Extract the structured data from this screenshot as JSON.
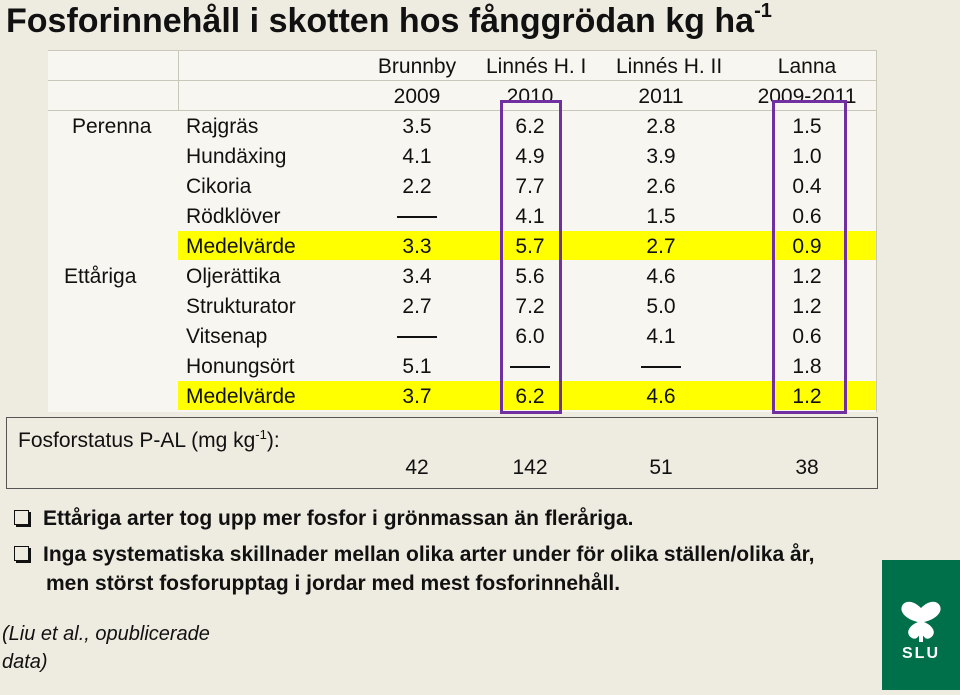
{
  "title": "Fosforinnehåll i skotten  hos fånggrödan kg ha",
  "title_sup": "-1",
  "columns": [
    {
      "site": "Brunnby",
      "years": "2009"
    },
    {
      "site": "Linnés H. I",
      "years": "2010"
    },
    {
      "site": "Linnés H. II",
      "years": "2011"
    },
    {
      "site": "Lanna",
      "years": "2009-2011"
    }
  ],
  "groups": {
    "perenna": "Perenna",
    "ettariga": "Ettåriga"
  },
  "rows": [
    {
      "label": "Rajgräs",
      "v": [
        "3.5",
        "6.2",
        "2.8",
        "1.5"
      ]
    },
    {
      "label": "Hundäxing",
      "v": [
        "4.1",
        "4.9",
        "3.9",
        "1.0"
      ]
    },
    {
      "label": "Cikoria",
      "v": [
        "2.2",
        "7.7",
        "2.6",
        "0.4"
      ]
    },
    {
      "label": "Rödklöver",
      "v": [
        "—",
        "4.1",
        "1.5",
        "0.6"
      ]
    },
    {
      "label": "Medelvärde",
      "v": [
        "3.3",
        "5.7",
        "2.7",
        "0.9"
      ]
    },
    {
      "label": "Oljerättika",
      "v": [
        "3.4",
        "5.6",
        "4.6",
        "1.2"
      ]
    },
    {
      "label": "Strukturator",
      "v": [
        "2.7",
        "7.2",
        "5.0",
        "1.2"
      ]
    },
    {
      "label": "Vitsenap",
      "v": [
        "—",
        "6.0",
        "4.1",
        "0.6"
      ]
    },
    {
      "label": "Honungsört",
      "v": [
        "5.1",
        "—",
        "—",
        "1.8"
      ]
    },
    {
      "label": "Medelvärde",
      "v": [
        "3.7",
        "6.2",
        "4.6",
        "1.2"
      ]
    }
  ],
  "fosforstatus": {
    "label_pre": "Fosforstatus P-AL (mg kg",
    "label_sup": "-1",
    "label_post": "):",
    "values": [
      "42",
      "142",
      "51",
      "38"
    ]
  },
  "bullets": [
    "Ettåriga arter tog upp mer fosfor i grönmassan än fleråriga.",
    "Inga systematiska skillnader mellan olika arter under för olika ställen/olika år,",
    "men störst fosforupptag i jordar med mest fosforinnehåll."
  ],
  "source": [
    "(Liu et al., opublicerade",
    "data)"
  ],
  "logo_text": "SLU",
  "colors": {
    "highlight": "#ffff00",
    "purple": "#7030a0",
    "logo": "#00704a",
    "background": "#eeebe0"
  }
}
